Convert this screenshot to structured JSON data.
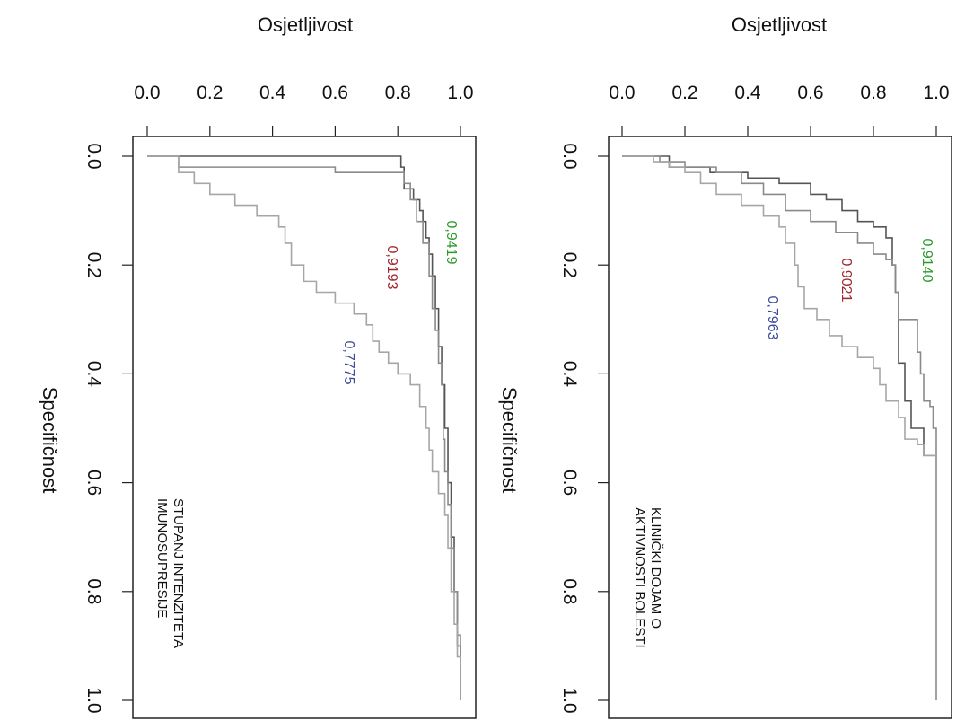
{
  "chart_data": [
    {
      "type": "line",
      "xlabel": "Osjetljivost",
      "ylabel": "Specifičnost",
      "xlim": [
        0.0,
        1.0
      ],
      "ylim": [
        0.0,
        1.0
      ],
      "x_ticks": [
        "0.0",
        "0.2",
        "0.4",
        "0.6",
        "0.8",
        "1.0"
      ],
      "y_ticks": [
        "0.0",
        "0.2",
        "0.4",
        "0.6",
        "0.8",
        "1.0"
      ],
      "grid": false,
      "panel_label": [
        "STUPANJ INTENZITETA",
        "IMUNOSUPRESIJE"
      ],
      "series": [
        {
          "auc": "0,9419",
          "color": "#555555",
          "label_color": "#2e9a2e",
          "points": [
            [
              0,
              0
            ],
            [
              0.15,
              0
            ],
            [
              0.32,
              0.0
            ],
            [
              0.5,
              0.0
            ],
            [
              0.66,
              0.0
            ],
            [
              0.8,
              0.0
            ],
            [
              0.81,
              0.02
            ],
            [
              0.82,
              0.06
            ],
            [
              0.85,
              0.08
            ],
            [
              0.87,
              0.1
            ],
            [
              0.88,
              0.12
            ],
            [
              0.89,
              0.15
            ],
            [
              0.9,
              0.18
            ],
            [
              0.91,
              0.22
            ],
            [
              0.92,
              0.28
            ],
            [
              0.93,
              0.35
            ],
            [
              0.94,
              0.42
            ],
            [
              0.95,
              0.5
            ],
            [
              0.96,
              0.6
            ],
            [
              0.97,
              0.7
            ],
            [
              0.98,
              0.8
            ],
            [
              0.99,
              0.9
            ],
            [
              1.0,
              1.0
            ]
          ]
        },
        {
          "auc": "0,9193",
          "color": "#8a8a8a",
          "label_color": "#a0282d",
          "points": [
            [
              0,
              0
            ],
            [
              0.1,
              0.02
            ],
            [
              0.3,
              0.02
            ],
            [
              0.6,
              0.03
            ],
            [
              0.8,
              0.03
            ],
            [
              0.82,
              0.05
            ],
            [
              0.84,
              0.08
            ],
            [
              0.86,
              0.12
            ],
            [
              0.88,
              0.16
            ],
            [
              0.9,
              0.22
            ],
            [
              0.91,
              0.28
            ],
            [
              0.92,
              0.32
            ],
            [
              0.93,
              0.38
            ],
            [
              0.94,
              0.42
            ],
            [
              0.945,
              0.52
            ],
            [
              0.95,
              0.58
            ],
            [
              0.96,
              0.64
            ],
            [
              0.97,
              0.72
            ],
            [
              0.98,
              0.8
            ],
            [
              0.99,
              0.88
            ],
            [
              1.0,
              1.0
            ]
          ]
        },
        {
          "auc": "0,7775",
          "color": "#a6a6a6",
          "label_color": "#3f4a9a",
          "points": [
            [
              0,
              0
            ],
            [
              0.1,
              0.03
            ],
            [
              0.15,
              0.05
            ],
            [
              0.2,
              0.07
            ],
            [
              0.28,
              0.09
            ],
            [
              0.35,
              0.11
            ],
            [
              0.42,
              0.13
            ],
            [
              0.44,
              0.16
            ],
            [
              0.46,
              0.2
            ],
            [
              0.5,
              0.23
            ],
            [
              0.54,
              0.25
            ],
            [
              0.6,
              0.27
            ],
            [
              0.66,
              0.29
            ],
            [
              0.7,
              0.31
            ],
            [
              0.72,
              0.34
            ],
            [
              0.74,
              0.36
            ],
            [
              0.77,
              0.38
            ],
            [
              0.8,
              0.4
            ],
            [
              0.84,
              0.42
            ],
            [
              0.87,
              0.46
            ],
            [
              0.89,
              0.5
            ],
            [
              0.9,
              0.54
            ],
            [
              0.91,
              0.58
            ],
            [
              0.93,
              0.62
            ],
            [
              0.95,
              0.66
            ],
            [
              0.96,
              0.72
            ],
            [
              0.97,
              0.8
            ],
            [
              0.98,
              0.86
            ],
            [
              0.99,
              0.92
            ],
            [
              1.0,
              1.0
            ]
          ]
        }
      ]
    },
    {
      "type": "line",
      "xlabel": "Osjetljivost",
      "ylabel": "Specifičnost",
      "xlim": [
        0.0,
        1.0
      ],
      "ylim": [
        0.0,
        1.0
      ],
      "x_ticks": [
        "0.0",
        "0.2",
        "0.4",
        "0.6",
        "0.8",
        "1.0"
      ],
      "y_ticks": [
        "0.0",
        "0.2",
        "0.4",
        "0.6",
        "0.8",
        "1.0"
      ],
      "grid": false,
      "panel_label": [
        "KLINIČKI DOJAM O",
        "AKTIVNOSTI BOLESTI"
      ],
      "series": [
        {
          "auc": "0,9140",
          "color": "#555555",
          "label_color": "#2e9a2e",
          "points": [
            [
              0,
              0
            ],
            [
              0.05,
              0
            ],
            [
              0.15,
              0.02
            ],
            [
              0.28,
              0.03
            ],
            [
              0.4,
              0.04
            ],
            [
              0.5,
              0.05
            ],
            [
              0.6,
              0.07
            ],
            [
              0.65,
              0.08
            ],
            [
              0.7,
              0.1
            ],
            [
              0.75,
              0.12
            ],
            [
              0.8,
              0.13
            ],
            [
              0.82,
              0.13
            ],
            [
              0.84,
              0.15
            ],
            [
              0.86,
              0.2
            ],
            [
              0.87,
              0.25
            ],
            [
              0.88,
              0.3
            ],
            [
              0.88,
              0.38
            ],
            [
              0.9,
              0.38
            ],
            [
              0.9,
              0.42
            ],
            [
              0.9,
              0.45
            ],
            [
              0.92,
              0.45
            ],
            [
              0.92,
              0.5
            ],
            [
              0.96,
              0.5
            ],
            [
              0.96,
              0.55
            ],
            [
              1.0,
              0.55
            ],
            [
              1.0,
              1.0
            ]
          ]
        },
        {
          "auc": "0,9021",
          "color": "#8a8a8a",
          "label_color": "#a0282d",
          "points": [
            [
              0,
              0
            ],
            [
              0.12,
              0.01
            ],
            [
              0.2,
              0.02
            ],
            [
              0.3,
              0.03
            ],
            [
              0.38,
              0.05
            ],
            [
              0.45,
              0.07
            ],
            [
              0.52,
              0.1
            ],
            [
              0.6,
              0.12
            ],
            [
              0.68,
              0.14
            ],
            [
              0.75,
              0.16
            ],
            [
              0.8,
              0.18
            ],
            [
              0.84,
              0.19
            ],
            [
              0.86,
              0.2
            ],
            [
              0.87,
              0.25
            ],
            [
              0.88,
              0.3
            ],
            [
              0.92,
              0.3
            ],
            [
              0.94,
              0.36
            ],
            [
              0.95,
              0.4
            ],
            [
              0.96,
              0.45
            ],
            [
              0.98,
              0.46
            ],
            [
              0.99,
              0.5
            ],
            [
              1.0,
              0.52
            ],
            [
              1.0,
              1.0
            ]
          ]
        },
        {
          "auc": "0,7963",
          "color": "#a6a6a6",
          "label_color": "#3f4a9a",
          "points": [
            [
              0,
              0
            ],
            [
              0.1,
              0.01
            ],
            [
              0.15,
              0.02
            ],
            [
              0.2,
              0.03
            ],
            [
              0.25,
              0.05
            ],
            [
              0.3,
              0.07
            ],
            [
              0.38,
              0.09
            ],
            [
              0.45,
              0.11
            ],
            [
              0.5,
              0.13
            ],
            [
              0.52,
              0.16
            ],
            [
              0.55,
              0.2
            ],
            [
              0.56,
              0.24
            ],
            [
              0.58,
              0.28
            ],
            [
              0.62,
              0.3
            ],
            [
              0.66,
              0.33
            ],
            [
              0.7,
              0.35
            ],
            [
              0.75,
              0.37
            ],
            [
              0.8,
              0.39
            ],
            [
              0.82,
              0.42
            ],
            [
              0.84,
              0.45
            ],
            [
              0.88,
              0.48
            ],
            [
              0.9,
              0.52
            ],
            [
              0.94,
              0.53
            ],
            [
              0.96,
              0.55
            ],
            [
              0.98,
              0.55
            ],
            [
              1.0,
              0.55
            ],
            [
              1.0,
              1.0
            ]
          ]
        }
      ]
    }
  ]
}
